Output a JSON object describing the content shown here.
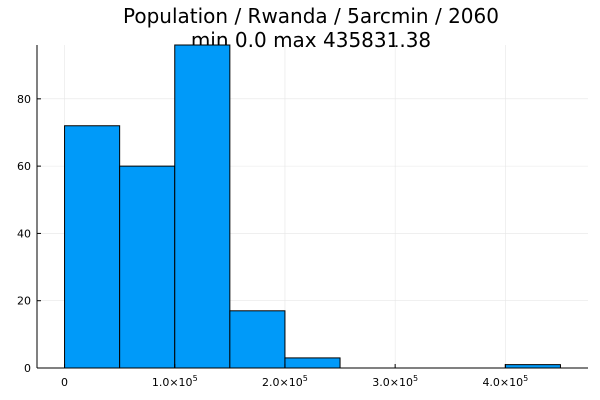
{
  "chart_data": {
    "type": "bar",
    "title_line1": "Population / Rwanda / 5arcmin / 2060",
    "title_line2": "min 0.0  max 435831.38",
    "xlabel": "",
    "ylabel": "",
    "bins": [
      {
        "start": 0,
        "end": 50000,
        "count": 72
      },
      {
        "start": 50000,
        "end": 100000,
        "count": 60
      },
      {
        "start": 100000,
        "end": 150000,
        "count": 96
      },
      {
        "start": 150000,
        "end": 200000,
        "count": 17
      },
      {
        "start": 200000,
        "end": 250000,
        "count": 3
      },
      {
        "start": 250000,
        "end": 300000,
        "count": 0
      },
      {
        "start": 300000,
        "end": 350000,
        "count": 0
      },
      {
        "start": 350000,
        "end": 400000,
        "count": 0
      },
      {
        "start": 400000,
        "end": 450000,
        "count": 1
      }
    ],
    "xlim": [
      -25000,
      475000
    ],
    "ylim": [
      0,
      96
    ],
    "x_ticks": [
      {
        "value": 0,
        "mantissa": "0",
        "exponent": ""
      },
      {
        "value": 100000,
        "mantissa": "1.0×10",
        "exponent": "5"
      },
      {
        "value": 200000,
        "mantissa": "2.0×10",
        "exponent": "5"
      },
      {
        "value": 300000,
        "mantissa": "3.0×10",
        "exponent": "5"
      },
      {
        "value": 400000,
        "mantissa": "4.0×10",
        "exponent": "5"
      }
    ],
    "y_ticks": [
      {
        "value": 0,
        "label": "0"
      },
      {
        "value": 20,
        "label": "20"
      },
      {
        "value": 40,
        "label": "40"
      },
      {
        "value": 60,
        "label": "60"
      },
      {
        "value": 80,
        "label": "80"
      }
    ],
    "grid": true,
    "legend": "none",
    "bar_color": "#009af9",
    "edge_color": "#000000"
  }
}
